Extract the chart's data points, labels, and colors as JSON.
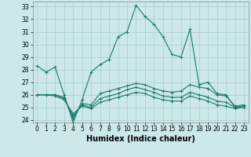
{
  "xlabel": "Humidex (Indice chaleur)",
  "x": [
    0,
    1,
    2,
    3,
    4,
    5,
    6,
    7,
    8,
    9,
    10,
    11,
    12,
    13,
    14,
    15,
    16,
    17,
    18,
    19,
    20,
    21,
    22,
    23
  ],
  "line1": [
    28.3,
    27.8,
    28.2,
    26.0,
    23.8,
    25.6,
    27.8,
    28.4,
    28.8,
    30.6,
    31.0,
    33.1,
    32.2,
    31.6,
    30.6,
    29.2,
    29.0,
    31.2,
    26.8,
    27.0,
    26.1,
    26.0,
    25.0,
    25.1
  ],
  "line2": [
    26.0,
    26.0,
    26.0,
    25.8,
    24.1,
    25.3,
    25.2,
    26.1,
    26.3,
    26.5,
    26.7,
    26.9,
    26.8,
    26.5,
    26.3,
    26.2,
    26.3,
    26.8,
    26.6,
    26.5,
    26.0,
    25.9,
    25.1,
    25.2
  ],
  "line3": [
    26.0,
    26.0,
    26.0,
    25.7,
    24.3,
    25.2,
    25.0,
    25.7,
    25.9,
    26.1,
    26.4,
    26.6,
    26.4,
    26.2,
    25.9,
    25.8,
    25.8,
    26.2,
    26.0,
    25.8,
    25.5,
    25.4,
    25.0,
    25.1
  ],
  "line4": [
    26.0,
    26.0,
    25.9,
    25.6,
    24.5,
    25.1,
    24.9,
    25.4,
    25.6,
    25.8,
    26.0,
    26.2,
    26.1,
    25.8,
    25.6,
    25.5,
    25.5,
    25.9,
    25.7,
    25.5,
    25.2,
    25.1,
    24.9,
    25.0
  ],
  "line_color": "#1a7a6e",
  "bg_color": "#cce8e8",
  "grid_color": "#aacece",
  "ylim": [
    23.8,
    33.4
  ],
  "yticks": [
    24,
    25,
    26,
    27,
    28,
    29,
    30,
    31,
    32,
    33
  ],
  "xticks": [
    0,
    1,
    2,
    3,
    4,
    5,
    6,
    7,
    8,
    9,
    10,
    11,
    12,
    13,
    14,
    15,
    16,
    17,
    18,
    19,
    20,
    21,
    22,
    23
  ],
  "tick_fontsize": 5.5,
  "xlabel_fontsize": 7.0,
  "markersize": 2.0
}
